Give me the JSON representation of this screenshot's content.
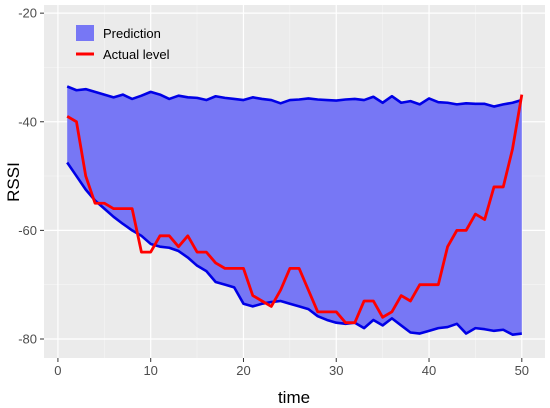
{
  "chart_data": {
    "type": "line",
    "title": "",
    "xlabel": "time",
    "ylabel": "RSSI",
    "xlim": [
      -1.5,
      52.5
    ],
    "ylim": [
      -83.5,
      -18.5
    ],
    "xticks": [
      0,
      10,
      20,
      30,
      40,
      50
    ],
    "yticks": [
      -80,
      -60,
      -40,
      -20
    ],
    "grid": true,
    "legend_position": "top-left",
    "x": [
      1,
      2,
      3,
      4,
      5,
      6,
      7,
      8,
      9,
      10,
      11,
      12,
      13,
      14,
      15,
      16,
      17,
      18,
      19,
      20,
      21,
      22,
      23,
      24,
      25,
      26,
      27,
      28,
      29,
      30,
      31,
      32,
      33,
      34,
      35,
      36,
      37,
      38,
      39,
      40,
      41,
      42,
      43,
      44,
      45,
      46,
      47,
      48,
      49,
      50
    ],
    "band": {
      "name": "Prediction",
      "color": "#7777f5",
      "edge_color": "#0000e6",
      "upper": [
        -33.5,
        -34.2,
        -34.0,
        -34.5,
        -35.0,
        -35.5,
        -35.0,
        -35.8,
        -35.2,
        -34.5,
        -35.0,
        -35.8,
        -35.2,
        -35.5,
        -35.6,
        -36.0,
        -35.3,
        -35.6,
        -35.8,
        -36.0,
        -35.5,
        -35.8,
        -36.0,
        -36.6,
        -36.0,
        -35.9,
        -35.7,
        -35.9,
        -36.0,
        -36.1,
        -35.9,
        -35.8,
        -36.0,
        -35.4,
        -36.5,
        -35.3,
        -36.5,
        -36.2,
        -36.8,
        -35.7,
        -36.4,
        -36.5,
        -36.8,
        -36.6,
        -36.7,
        -36.7,
        -37.2,
        -36.8,
        -36.5,
        -36.0
      ],
      "lower": [
        -47.5,
        -50.0,
        -52.5,
        -54.5,
        -56.0,
        -57.5,
        -58.8,
        -60.0,
        -61.0,
        -62.5,
        -63.0,
        -63.2,
        -63.8,
        -65.0,
        -66.5,
        -67.5,
        -69.5,
        -70.0,
        -70.5,
        -73.5,
        -74.0,
        -73.5,
        -73.2,
        -73.0,
        -73.5,
        -74.0,
        -74.5,
        -75.8,
        -76.5,
        -77.0,
        -77.2,
        -77.0,
        -78.0,
        -76.5,
        -77.5,
        -76.2,
        -77.5,
        -78.8,
        -79.0,
        -78.5,
        -78.0,
        -77.8,
        -77.2,
        -79.0,
        -78.0,
        -78.2,
        -78.5,
        -78.3,
        -79.2,
        -79.0
      ]
    },
    "series": [
      {
        "name": "Actual level",
        "color": "#ff0000",
        "values": [
          -39.0,
          -40.0,
          -50.0,
          -55.0,
          -55.0,
          -56.0,
          -56.0,
          -56.0,
          -64.0,
          -64.0,
          -61.0,
          -61.0,
          -63.0,
          -61.0,
          -64.0,
          -64.0,
          -66.0,
          -67.0,
          -67.0,
          -67.0,
          -72.0,
          -73.0,
          -74.0,
          -71.0,
          -67.0,
          -67.0,
          -71.0,
          -75.0,
          -75.0,
          -75.0,
          -77.0,
          -77.0,
          -73.0,
          -73.0,
          -76.0,
          -75.0,
          -72.0,
          -73.0,
          -70.0,
          -70.0,
          -70.0,
          -63.0,
          -60.0,
          -60.0,
          -57.0,
          -58.0,
          -52.0,
          -52.0,
          -45.0,
          -35.0
        ]
      }
    ]
  }
}
